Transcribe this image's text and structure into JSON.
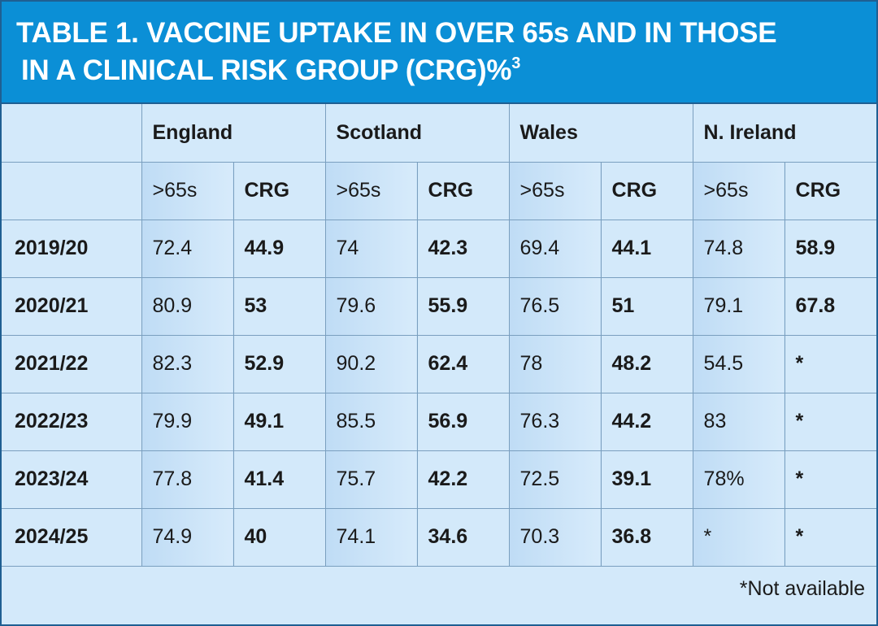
{
  "title": {
    "line1": "TABLE 1. VACCINE UPTAKE IN OVER 65s AND IN THOSE",
    "line2": "IN A CLINICAL RISK GROUP (CRG)%",
    "superscript": "3"
  },
  "regions": [
    "England",
    "Scotland",
    "Wales",
    "N. Ireland"
  ],
  "subheaders": {
    "over65": ">65s",
    "crg": "CRG"
  },
  "rows": [
    {
      "year": "2019/20",
      "values": [
        "72.4",
        "44.9",
        "74",
        "42.3",
        "69.4",
        "44.1",
        "74.8",
        "58.9"
      ]
    },
    {
      "year": "2020/21",
      "values": [
        "80.9",
        "53",
        "79.6",
        "55.9",
        "76.5",
        "51",
        "79.1",
        "67.8"
      ]
    },
    {
      "year": "2021/22",
      "values": [
        "82.3",
        "52.9",
        "90.2",
        "62.4",
        "78",
        "48.2",
        "54.5",
        "*"
      ]
    },
    {
      "year": "2022/23",
      "values": [
        "79.9",
        "49.1",
        "85.5",
        "56.9",
        "76.3",
        "44.2",
        "83",
        "*"
      ]
    },
    {
      "year": "2023/24",
      "values": [
        "77.8",
        "41.4",
        "75.7",
        "42.2",
        "72.5",
        "39.1",
        "78%",
        "*"
      ]
    },
    {
      "year": "2024/25",
      "values": [
        "74.9",
        "40",
        "74.1",
        "34.6",
        "70.3",
        "36.8",
        "*",
        "*"
      ]
    }
  ],
  "footnote": "*Not available",
  "colors": {
    "header_bg": "#0b8fd6",
    "table_bg": "#d3e9fa",
    "over65_col_bg": "#bfdcf5",
    "border": "#1f5f92"
  }
}
